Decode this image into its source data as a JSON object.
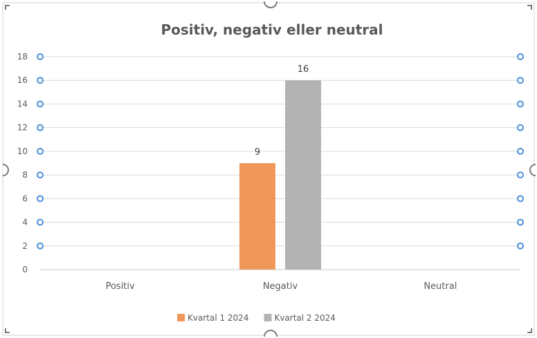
{
  "chart_data": {
    "type": "bar",
    "title": "Positiv, negativ eller neutral",
    "categories": [
      "Positiv",
      "Negativ",
      "Neutral"
    ],
    "series": [
      {
        "name": "Kvartal 1 2024",
        "color": "#F0975A",
        "values": [
          null,
          9,
          null
        ],
        "data_labels": [
          "",
          "9",
          ""
        ]
      },
      {
        "name": "Kvartal 2 2024",
        "color": "#B3B3B3",
        "values": [
          null,
          16,
          null
        ],
        "data_labels": [
          "",
          "16",
          ""
        ]
      }
    ],
    "yticks": [
      "0",
      "2",
      "4",
      "6",
      "8",
      "10",
      "12",
      "14",
      "16",
      "18"
    ],
    "ylim": [
      0,
      18
    ],
    "grid": true,
    "legend_position": "bottom",
    "selected": true
  }
}
